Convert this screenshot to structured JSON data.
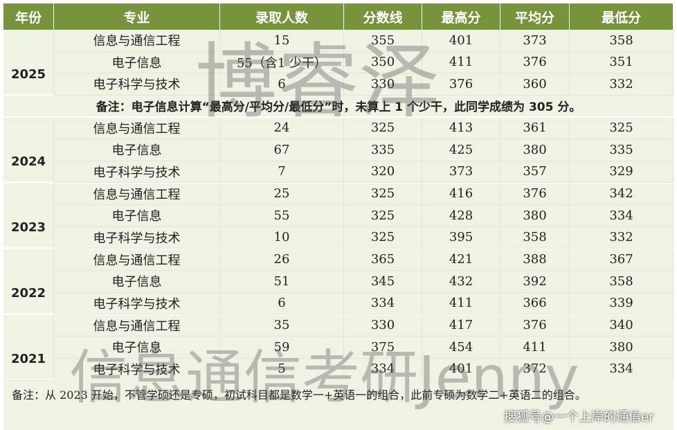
{
  "table": {
    "header": [
      "年份",
      "专业",
      "录取人数",
      "分数线",
      "最高分",
      "平均分",
      "最低分"
    ],
    "groups": [
      {
        "year": "2025",
        "rows": [
          [
            "信息与通信工程",
            "15",
            "355",
            "401",
            "373",
            "358"
          ],
          [
            "电子信息",
            "55（含1 少干）",
            "350",
            "411",
            "376",
            "351"
          ],
          [
            "电子科学与技术",
            "6",
            "330",
            "376",
            "360",
            "332"
          ]
        ],
        "note": "备注：电子信息计算“最高分/平均分/最低分”时，未算上 1 个少干，此同学成绩为 305 分。"
      },
      {
        "year": "2024",
        "rows": [
          [
            "信息与通信工程",
            "24",
            "325",
            "413",
            "361",
            "325"
          ],
          [
            "电子信息",
            "67",
            "335",
            "425",
            "380",
            "335"
          ],
          [
            "电子科学与技术",
            "7",
            "320",
            "373",
            "357",
            "329"
          ]
        ]
      },
      {
        "year": "2023",
        "rows": [
          [
            "信息与通信工程",
            "25",
            "325",
            "416",
            "376",
            "342"
          ],
          [
            "电子信息",
            "55",
            "325",
            "428",
            "380",
            "334"
          ],
          [
            "电子科学与技术",
            "10",
            "325",
            "395",
            "358",
            "332"
          ]
        ]
      },
      {
        "year": "2022",
        "rows": [
          [
            "信息与通信工程",
            "26",
            "365",
            "421",
            "388",
            "367"
          ],
          [
            "电子信息",
            "51",
            "345",
            "432",
            "392",
            "358"
          ],
          [
            "电子科学与技术",
            "6",
            "334",
            "411",
            "366",
            "339"
          ]
        ]
      },
      {
        "year": "2021",
        "rows": [
          [
            "信息与通信工程",
            "35",
            "330",
            "417",
            "376",
            "340"
          ],
          [
            "电子信息",
            "59",
            "375",
            "454",
            "411",
            "380"
          ],
          [
            "电子科学与技术",
            "5",
            "334",
            "401",
            "372",
            "334"
          ]
        ]
      }
    ],
    "footnote": "备注：从 2023 开始，不管学硕还是专硕，初试科目都是数学一+英语一的组合，此前专硕为数学二+英语二的组合。"
  },
  "watermarks": {
    "top": "博睿泽",
    "bottom": "信息通信考研Jenny",
    "source": "搜狐号@一个上岸的通信er"
  }
}
